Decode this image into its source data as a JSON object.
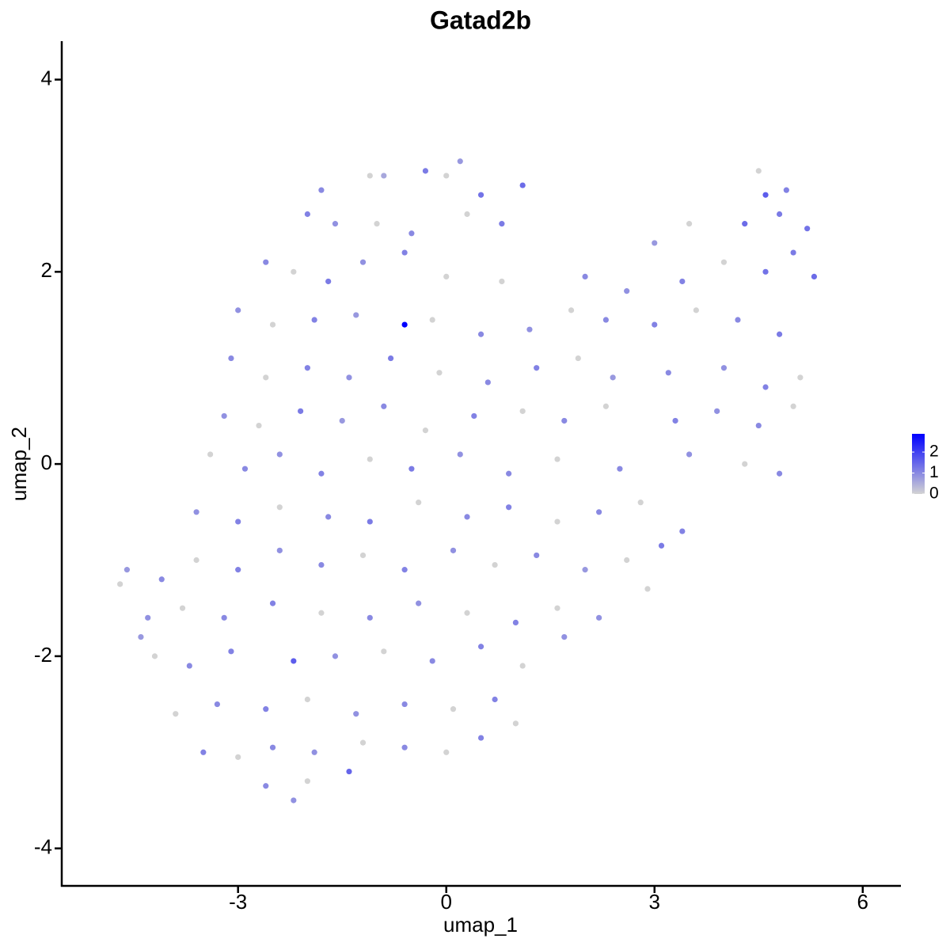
{
  "chart_data": {
    "type": "scatter",
    "title": "Gatad2b",
    "x_label": "umap_1",
    "y_label": "umap_2",
    "x": [
      0.2,
      -0.3,
      -0.9,
      -1.1,
      0.0,
      -1.8,
      0.5,
      1.1,
      4.5,
      4.6,
      4.9,
      -2.0,
      -1.6,
      -1.0,
      -0.5,
      0.3,
      0.8,
      3.5,
      4.3,
      4.8,
      5.2,
      3.0,
      -2.6,
      -2.2,
      -1.7,
      -1.2,
      -0.6,
      0.0,
      0.8,
      2.0,
      2.6,
      3.4,
      4.0,
      4.6,
      5.3,
      5.0,
      -3.0,
      -2.5,
      -1.9,
      -1.3,
      -0.6,
      -0.2,
      0.5,
      1.2,
      1.8,
      2.3,
      3.0,
      3.6,
      4.2,
      4.8,
      -3.1,
      -2.6,
      -2.0,
      -1.4,
      -0.8,
      -0.1,
      0.6,
      1.3,
      1.9,
      2.4,
      3.2,
      4.0,
      4.6,
      5.1,
      -3.2,
      -2.7,
      -2.1,
      -1.5,
      -0.9,
      -0.3,
      0.4,
      1.1,
      1.7,
      2.3,
      3.3,
      3.9,
      4.5,
      5.0,
      -3.4,
      -2.9,
      -2.4,
      -1.8,
      -1.1,
      -0.5,
      0.2,
      0.9,
      1.6,
      2.5,
      3.5,
      4.3,
      4.8,
      -3.6,
      -3.0,
      -2.4,
      -1.7,
      -1.1,
      -0.4,
      0.3,
      0.9,
      1.6,
      2.2,
      2.8,
      3.4,
      -4.1,
      -3.6,
      -3.0,
      -2.4,
      -1.8,
      -1.2,
      -0.6,
      0.1,
      0.7,
      1.3,
      2.0,
      2.6,
      3.1,
      -4.7,
      -4.6,
      -4.3,
      -3.8,
      -3.2,
      -2.5,
      -1.8,
      -1.1,
      -0.4,
      0.3,
      1.0,
      1.6,
      2.2,
      2.9,
      -4.2,
      -3.7,
      -3.1,
      -2.2,
      -1.6,
      -0.9,
      -0.2,
      0.5,
      1.1,
      1.7,
      -4.4,
      -3.9,
      -3.3,
      -2.6,
      -2.0,
      -1.3,
      -0.6,
      0.1,
      0.7,
      1.0,
      -3.5,
      -3.0,
      -2.5,
      -1.9,
      -1.2,
      -0.6,
      0.0,
      0.5,
      -1.4,
      -2.2,
      -2.6,
      -2.0
    ],
    "y": [
      3.15,
      3.05,
      3.0,
      3.0,
      3.0,
      2.85,
      2.8,
      2.9,
      3.05,
      2.8,
      2.85,
      2.6,
      2.5,
      2.5,
      2.4,
      2.6,
      2.5,
      2.5,
      2.5,
      2.6,
      2.45,
      2.3,
      2.1,
      2.0,
      1.9,
      2.1,
      2.2,
      1.95,
      1.9,
      1.95,
      1.8,
      1.9,
      2.1,
      2.0,
      1.95,
      2.2,
      1.6,
      1.45,
      1.5,
      1.55,
      1.45,
      1.5,
      1.35,
      1.4,
      1.6,
      1.5,
      1.45,
      1.6,
      1.5,
      1.35,
      1.1,
      0.9,
      1.0,
      0.9,
      1.1,
      0.95,
      0.85,
      1.0,
      1.1,
      0.9,
      0.95,
      1.0,
      0.8,
      0.9,
      0.5,
      0.4,
      0.55,
      0.45,
      0.6,
      0.35,
      0.5,
      0.55,
      0.45,
      0.6,
      0.45,
      0.55,
      0.4,
      0.6,
      0.1,
      -0.05,
      0.1,
      -0.1,
      0.05,
      -0.05,
      0.1,
      -0.1,
      0.05,
      -0.05,
      0.1,
      0.0,
      -0.1,
      -0.5,
      -0.6,
      -0.45,
      -0.55,
      -0.6,
      -0.4,
      -0.55,
      -0.45,
      -0.6,
      -0.5,
      -0.4,
      -0.7,
      -1.2,
      -1.0,
      -1.1,
      -0.9,
      -1.05,
      -0.95,
      -1.1,
      -0.9,
      -1.05,
      -0.95,
      -1.1,
      -1.0,
      -0.85,
      -1.25,
      -1.1,
      -1.6,
      -1.5,
      -1.6,
      -1.45,
      -1.55,
      -1.6,
      -1.45,
      -1.55,
      -1.65,
      -1.5,
      -1.6,
      -1.3,
      -2.0,
      -2.1,
      -1.95,
      -2.05,
      -2.0,
      -1.95,
      -2.05,
      -1.9,
      -2.1,
      -1.8,
      -1.8,
      -2.6,
      -2.5,
      -2.55,
      -2.45,
      -2.6,
      -2.5,
      -2.55,
      -2.45,
      -2.7,
      -3.0,
      -3.05,
      -2.95,
      -3.0,
      -2.9,
      -2.95,
      -3.0,
      -2.85,
      -3.2,
      -3.5,
      -3.35,
      -3.3
    ],
    "values": [
      0.8,
      1.2,
      0.6,
      0,
      0,
      1.0,
      1.3,
      1.4,
      0,
      1.6,
      1.1,
      1.1,
      0.9,
      0,
      1.0,
      0,
      1.2,
      0,
      1.4,
      1.2,
      1.3,
      0.8,
      1.0,
      0,
      1.2,
      0.9,
      1.1,
      0,
      0,
      1.0,
      0.9,
      1.1,
      0,
      1.3,
      1.4,
      1.2,
      0.9,
      0,
      1.1,
      0.8,
      2.87,
      0,
      1.0,
      0.9,
      0,
      1.0,
      1.1,
      0,
      1.0,
      1.2,
      1.0,
      0,
      1.1,
      0.9,
      1.2,
      0,
      1.0,
      1.1,
      0,
      0.8,
      1.0,
      0.9,
      1.1,
      0,
      0.9,
      0,
      1.2,
      0.8,
      1.0,
      0,
      1.1,
      0,
      1.0,
      0,
      1.1,
      0.9,
      1.0,
      0,
      0,
      1.0,
      0.9,
      1.1,
      0,
      1.2,
      0.9,
      1.0,
      0,
      1.0,
      0.9,
      0,
      1.0,
      0.9,
      1.1,
      0,
      1.0,
      1.2,
      0,
      1.0,
      1.1,
      0,
      1.0,
      0,
      1.1,
      1.0,
      0,
      1.1,
      0.9,
      1.0,
      0,
      1.1,
      0.9,
      0,
      1.0,
      0.8,
      0,
      1.2,
      0,
      0.8,
      0.9,
      0,
      1.0,
      1.1,
      0,
      1.0,
      0.9,
      0,
      1.1,
      0,
      0.9,
      0,
      0,
      1.0,
      1.1,
      1.6,
      0.9,
      0,
      1.0,
      1.1,
      0,
      0.9,
      0.8,
      0,
      1.0,
      1.1,
      0,
      0.9,
      1.0,
      0,
      1.1,
      0,
      1.1,
      0,
      1.0,
      0.9,
      0,
      1.0,
      0,
      1.1,
      1.5,
      0.9,
      1.0,
      0
    ],
    "xlim": [
      -5.54,
      6.55
    ],
    "ylim": [
      -4.39,
      4.4
    ],
    "xticks": [
      -3,
      0,
      3,
      6
    ],
    "yticks": [
      -4,
      -2,
      0,
      2,
      4
    ],
    "colorbar": {
      "low_color": "#d3d3d3",
      "high_color": "#0000ff",
      "range": [
        0,
        2.87
      ],
      "ticks": [
        0,
        1,
        2
      ]
    }
  }
}
